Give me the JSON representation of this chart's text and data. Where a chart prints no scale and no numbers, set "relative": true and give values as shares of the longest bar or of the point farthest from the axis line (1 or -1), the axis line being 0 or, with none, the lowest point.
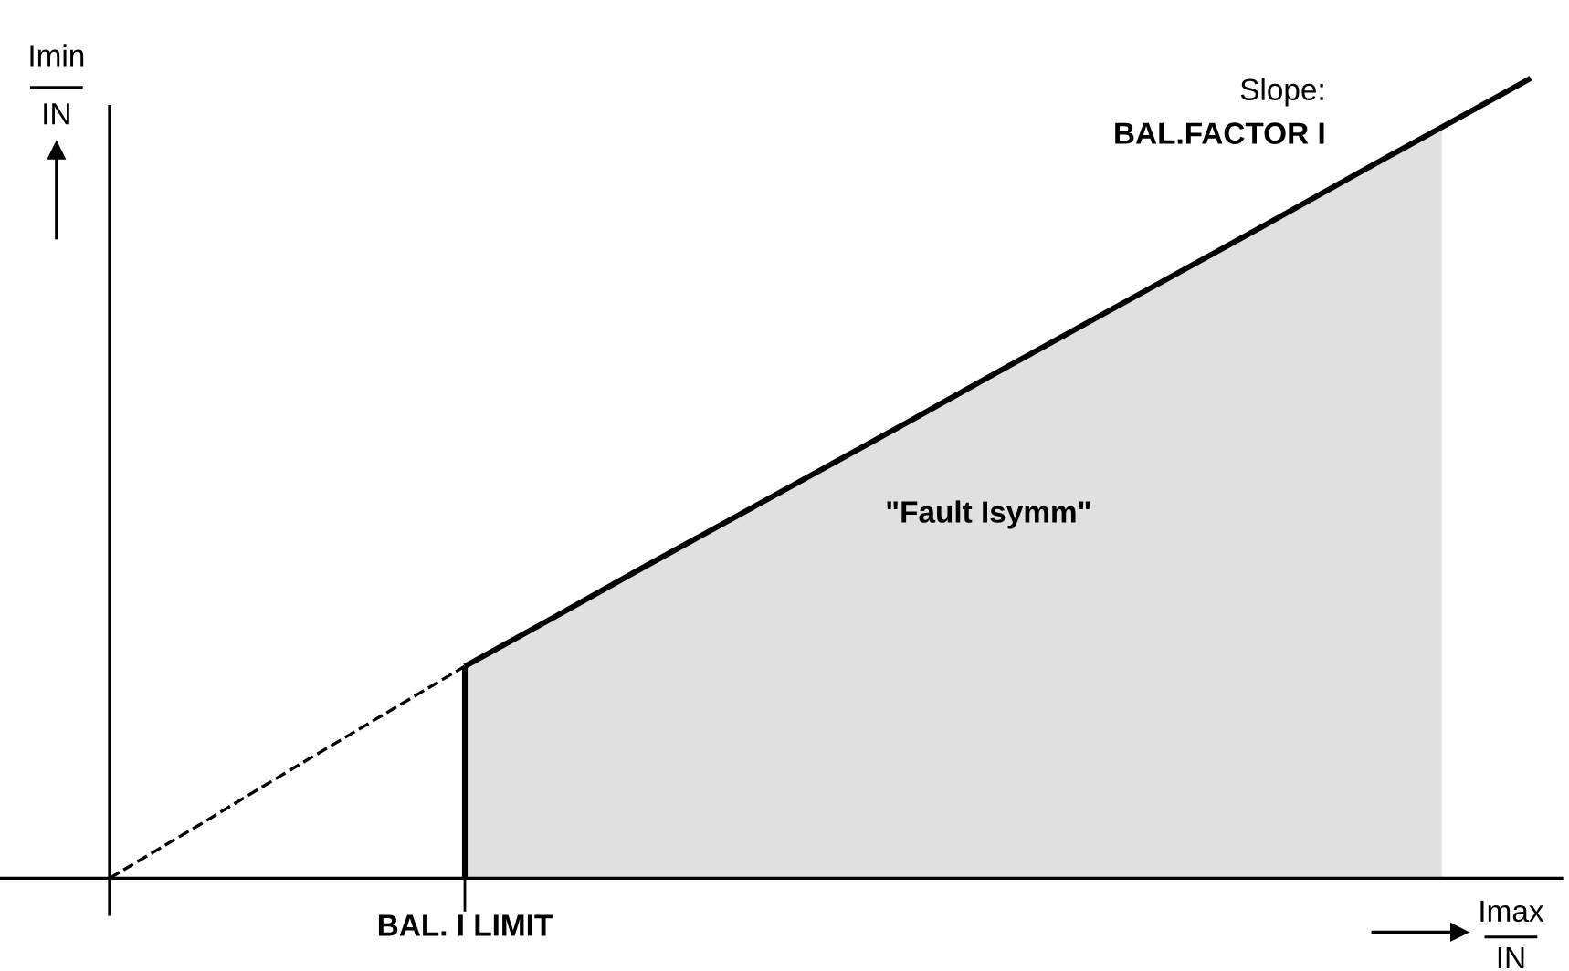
{
  "chart_data": {
    "type": "line",
    "relative": true,
    "xlabel": "Imax\nIN",
    "ylabel": "Imin\nIN",
    "categories": [
      null,
      null,
      null,
      null,
      null,
      null,
      null,
      null,
      null,
      null,
      null,
      null,
      null,
      null,
      null,
      null,
      null
    ],
    "series": [
      {
        "type": "area",
        "color": "#e0e0e0",
        "values": [
          null,
          null,
          null,
          null,
          0.265,
          0.326,
          0.388,
          0.449,
          0.51,
          0.571,
          0.633,
          0.694,
          0.755,
          0.816,
          0.878,
          0.939,
          null
        ]
      },
      {
        "color": "#000000",
        "line_style": "dashed",
        "values": [
          0,
          0.066,
          0.133,
          0.199,
          0.265,
          null,
          null,
          null,
          null,
          null,
          null,
          null,
          null,
          null,
          null,
          null,
          null
        ]
      },
      {
        "color": "#000000",
        "line_style": "solid",
        "values": [
          null,
          null,
          null,
          null,
          0.265,
          0.326,
          0.388,
          0.449,
          0.51,
          0.571,
          0.633,
          0.694,
          0.755,
          0.816,
          0.878,
          0.939,
          1
        ]
      }
    ],
    "annotations": [
      "Slope:",
      "BAL.FACTOR I",
      "\"Fault Isymm\"",
      "BAL. I LIMIT"
    ]
  }
}
